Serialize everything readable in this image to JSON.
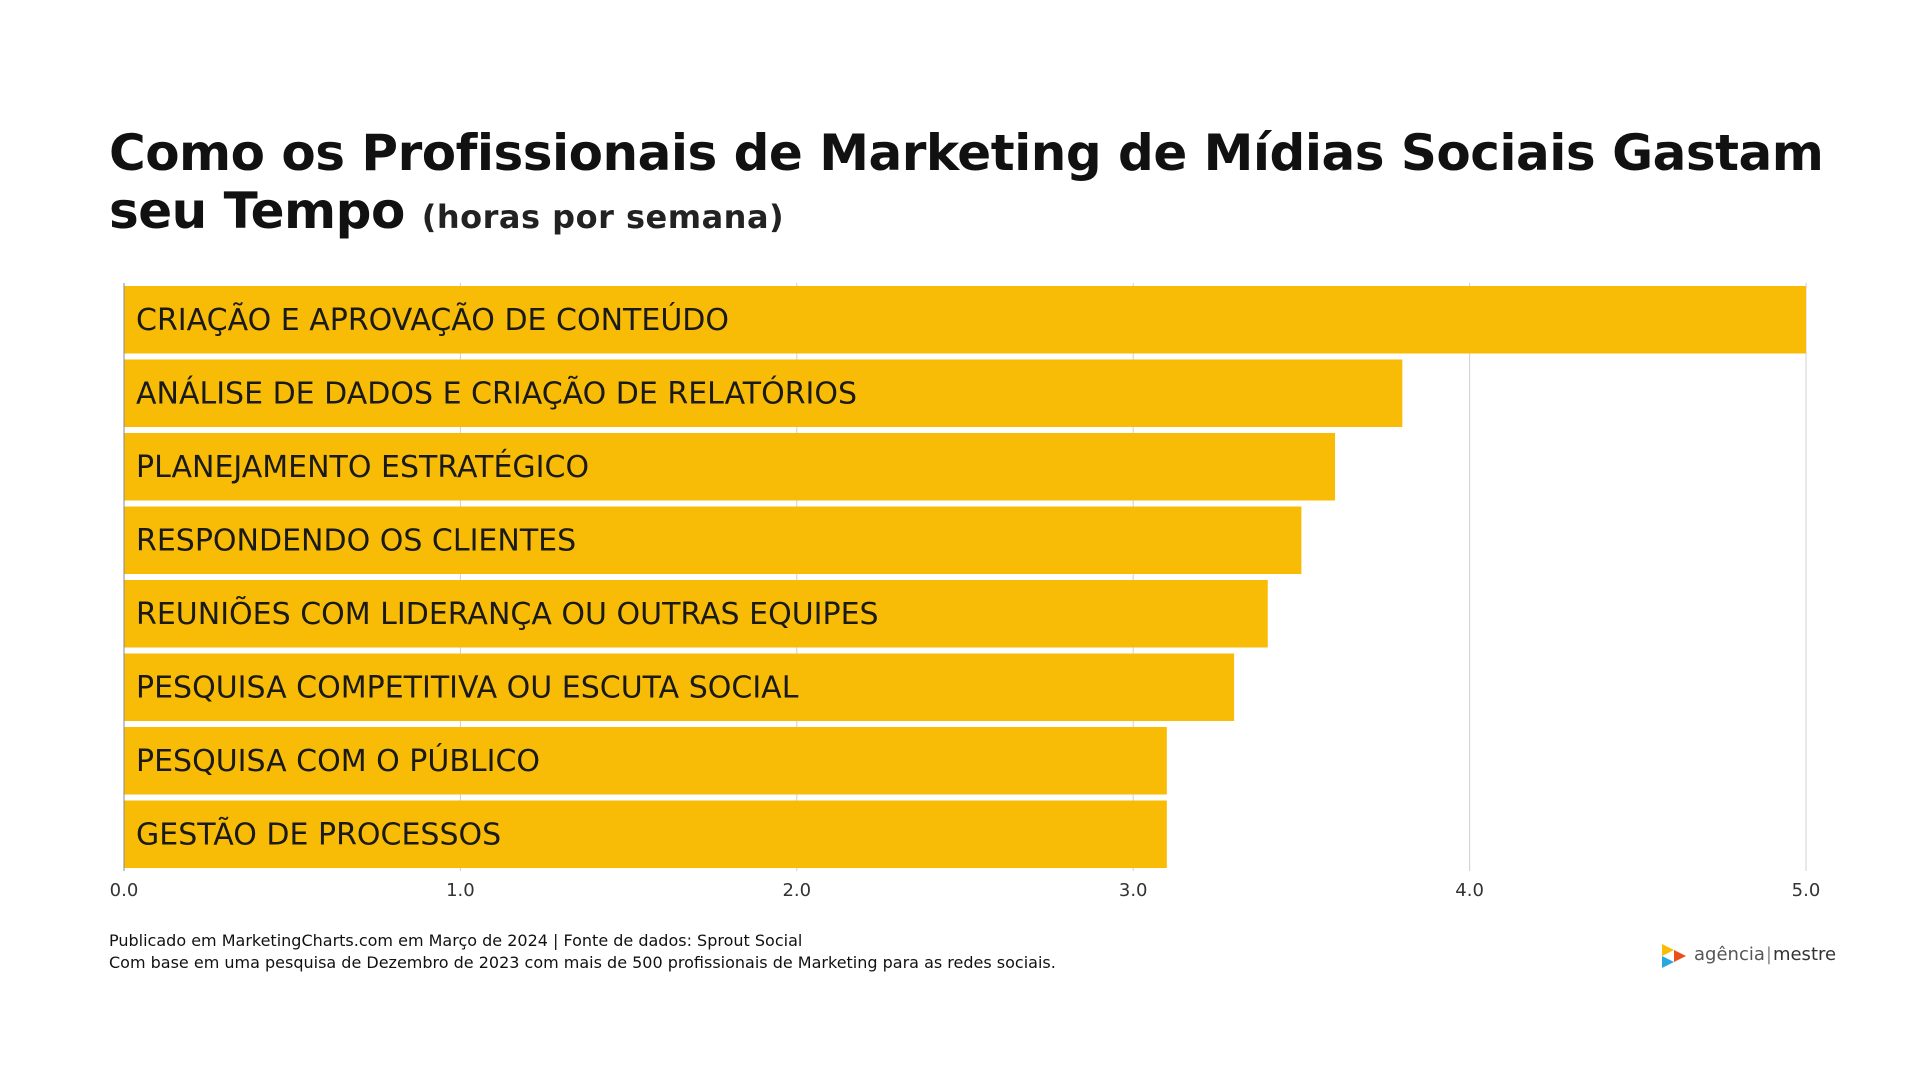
{
  "title": {
    "main": "Como os Profissionais de Marketing de Mídias Sociais Gastam seu Tempo",
    "unit": "(horas por semana)"
  },
  "chart_data": {
    "type": "bar",
    "orientation": "horizontal",
    "categories": [
      "CRIAÇÃO E APROVAÇÃO DE CONTEÚDO",
      "ANÁLISE DE DADOS E CRIAÇÃO DE RELATÓRIOS",
      "PLANEJAMENTO ESTRATÉGICO",
      "RESPONDENDO OS CLIENTES",
      "REUNIÕES COM LIDERANÇA OU OUTRAS EQUIPES",
      "PESQUISA COMPETITIVA OU ESCUTA SOCIAL",
      "PESQUISA COM O PÚBLICO",
      "GESTÃO DE PROCESSOS"
    ],
    "values": [
      5.0,
      3.8,
      3.6,
      3.5,
      3.4,
      3.3,
      3.1,
      3.1
    ],
    "xlim": [
      0,
      5
    ],
    "x_ticks": [
      "0.0",
      "1.0",
      "2.0",
      "3.0",
      "4.0",
      "5.0"
    ],
    "grid": "vertical",
    "bar_color": "#F9BC06",
    "grid_color": "#d0d0d0"
  },
  "footer": {
    "line1": "Publicado em MarketingCharts.com em Março de 2024 | Fonte de dados: Sprout Social",
    "line2": "Com base em uma pesquisa de Dezembro de 2023 com mais de 500 profissionais de Marketing para as redes sociais."
  },
  "logo": {
    "part1": "agência",
    "separator": "|",
    "part2": "mestre",
    "colors": [
      "#F9BC06",
      "#E94E1B",
      "#2AA7DF"
    ]
  }
}
